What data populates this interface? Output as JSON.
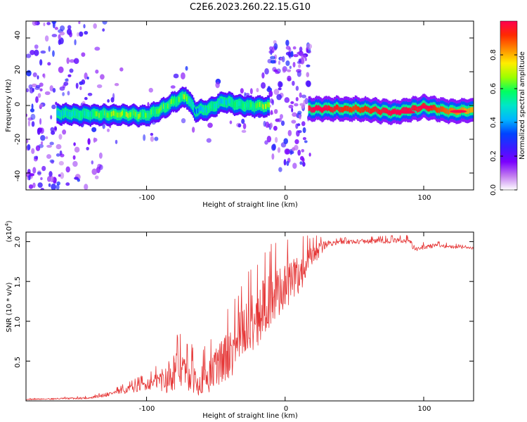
{
  "title": "C2E6.2023.260.22.15.G10",
  "colors": {
    "snr_line": "#e53535",
    "axis": "#000000"
  },
  "chart_data": [
    {
      "type": "heatmap",
      "xlabel": "Height of straight line (km)",
      "ylabel": "Frequency (Hz)",
      "xlim": [
        -187,
        136
      ],
      "ylim": [
        -50,
        50
      ],
      "x_ticks": [
        "-100",
        "0",
        "100"
      ],
      "y_ticks": [
        "-40",
        "-20",
        "0",
        "20",
        "40"
      ],
      "colorbar": {
        "label": "Normalized spectral amplitude",
        "range": [
          0,
          1
        ],
        "ticks": [
          "0.0",
          "0.2",
          "0.4",
          "0.6",
          "0.8"
        ],
        "colormap": [
          "#ffffff",
          "#c27bf0",
          "#7a00ff",
          "#3a1cff",
          "#0044ff",
          "#00b6ff",
          "#00e6c8",
          "#00ff60",
          "#9cff00",
          "#ffee00",
          "#ff8c00",
          "#ff2a00",
          "#ff0050"
        ]
      },
      "ridge": [
        {
          "x": -160,
          "freq": -4.5,
          "amp": 0.5
        },
        {
          "x": -140,
          "freq": -5.0,
          "amp": 0.6
        },
        {
          "x": -120,
          "freq": -5.0,
          "amp": 0.7
        },
        {
          "x": -100,
          "freq": -5.5,
          "amp": 0.6
        },
        {
          "x": -90,
          "freq": -2.0,
          "amp": 0.6
        },
        {
          "x": -80,
          "freq": 3.0,
          "amp": 0.65
        },
        {
          "x": -72,
          "freq": 6.0,
          "amp": 0.65
        },
        {
          "x": -65,
          "freq": -3.0,
          "amp": 0.4
        },
        {
          "x": -55,
          "freq": -1.5,
          "amp": 0.55
        },
        {
          "x": -45,
          "freq": 3.0,
          "amp": 0.5
        },
        {
          "x": -35,
          "freq": 1.0,
          "amp": 0.55
        },
        {
          "x": -25,
          "freq": 0.0,
          "amp": 0.6
        },
        {
          "x": -15,
          "freq": 0.0,
          "amp": 0.7
        },
        {
          "x": 20,
          "freq": -2.0,
          "amp": 1.0
        },
        {
          "x": 50,
          "freq": -2.0,
          "amp": 0.9
        },
        {
          "x": 80,
          "freq": -4.0,
          "amp": 1.0
        },
        {
          "x": 100,
          "freq": -1.0,
          "amp": 0.95
        },
        {
          "x": 120,
          "freq": -3.5,
          "amp": 0.85
        },
        {
          "x": 136,
          "freq": -3.0,
          "amp": 0.8
        }
      ]
    },
    {
      "type": "line",
      "xlabel": "Height of straight line (km)",
      "ylabel": "SNR (10 * v/v)",
      "yunit": "(x10",
      "yunit_exp": "4",
      "yunit_close": ")",
      "xlim": [
        -187,
        136
      ],
      "ylim": [
        0,
        2.12
      ],
      "x_ticks": [
        "-100",
        "0",
        "100"
      ],
      "y_ticks": [
        "0.5",
        "1.0",
        "1.5",
        "2.0"
      ],
      "series": [
        {
          "points": [
            [
              -187,
              0.02
            ],
            [
              -160,
              0.03
            ],
            [
              -140,
              0.04
            ],
            [
              -130,
              0.08
            ],
            [
              -120,
              0.12
            ],
            [
              -110,
              0.17
            ],
            [
              -100,
              0.22
            ],
            [
              -90,
              0.28
            ],
            [
              -85,
              0.32
            ],
            [
              -80,
              0.42
            ],
            [
              -75,
              0.45
            ],
            [
              -70,
              0.36
            ],
            [
              -65,
              0.32
            ],
            [
              -60,
              0.3
            ],
            [
              -55,
              0.35
            ],
            [
              -50,
              0.45
            ],
            [
              -45,
              0.55
            ],
            [
              -40,
              0.65
            ],
            [
              -35,
              0.78
            ],
            [
              -30,
              0.92
            ],
            [
              -25,
              1.05
            ],
            [
              -20,
              1.12
            ],
            [
              -15,
              1.25
            ],
            [
              -10,
              1.35
            ],
            [
              -5,
              1.42
            ],
            [
              0,
              1.48
            ],
            [
              5,
              1.55
            ],
            [
              10,
              1.62
            ],
            [
              15,
              1.72
            ],
            [
              20,
              1.82
            ],
            [
              25,
              1.92
            ],
            [
              30,
              1.98
            ],
            [
              40,
              2.0
            ],
            [
              60,
              2.01
            ],
            [
              80,
              2.02
            ],
            [
              90,
              2.02
            ],
            [
              92,
              1.95
            ],
            [
              95,
              1.9
            ],
            [
              100,
              1.94
            ],
            [
              110,
              1.96
            ],
            [
              120,
              1.94
            ],
            [
              136,
              1.92
            ]
          ],
          "noise": [
            [
              -187,
              0.01
            ],
            [
              -140,
              0.02
            ],
            [
              -120,
              0.05
            ],
            [
              -95,
              0.12
            ],
            [
              -80,
              0.35
            ],
            [
              -60,
              0.28
            ],
            [
              -40,
              0.45
            ],
            [
              -20,
              0.55
            ],
            [
              0,
              0.45
            ],
            [
              15,
              0.3
            ],
            [
              25,
              0.12
            ],
            [
              35,
              0.04
            ],
            [
              90,
              0.05
            ],
            [
              136,
              0.02
            ]
          ]
        }
      ]
    }
  ]
}
